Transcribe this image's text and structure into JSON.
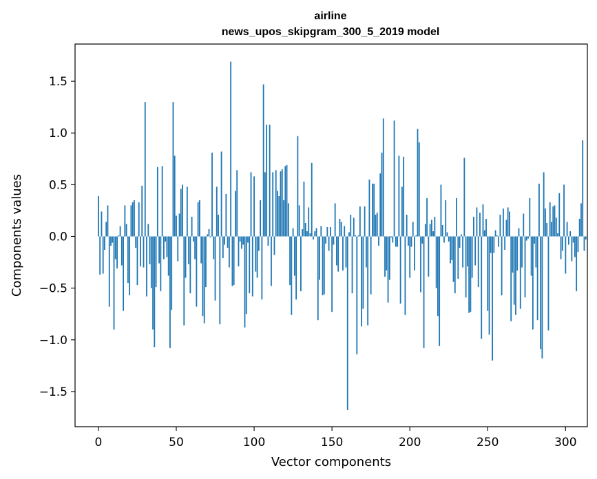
{
  "chart_data": {
    "type": "bar",
    "title_line1": "airline",
    "title_line2": "news_upos_skipgram_300_5_2019 model",
    "xlabel": "Vector components",
    "ylabel": "Components values",
    "xlim": [
      -15,
      314
    ],
    "ylim": [
      -1.84,
      1.86
    ],
    "xticks": [
      0,
      50,
      100,
      150,
      200,
      250,
      300
    ],
    "xtick_labels": [
      "0",
      "50",
      "100",
      "150",
      "200",
      "250",
      "300"
    ],
    "yticks": [
      -1.5,
      -1.0,
      -0.5,
      0.0,
      0.5,
      1.0,
      1.5
    ],
    "ytick_labels": [
      "−1.5",
      "−1.0",
      "−0.5",
      "0.0",
      "0.5",
      "1.0",
      "1.5"
    ],
    "bar_color": "#1f77b4",
    "values": [
      0.39,
      -0.37,
      0.24,
      -0.36,
      -0.13,
      0.14,
      0.3,
      -0.68,
      -0.09,
      -0.06,
      -0.9,
      -0.22,
      -0.31,
      0.01,
      0.1,
      -0.28,
      -0.72,
      0.3,
      0.12,
      -0.45,
      -0.57,
      0.3,
      0.33,
      0.35,
      -0.11,
      -0.47,
      0.33,
      -0.29,
      0.49,
      -0.3,
      1.3,
      -0.58,
      0.12,
      -0.27,
      -0.5,
      -0.9,
      -1.07,
      -0.49,
      0.67,
      -0.26,
      -0.53,
      0.68,
      -0.22,
      -0.05,
      -0.2,
      -0.38,
      -1.08,
      -0.71,
      1.3,
      0.78,
      0.2,
      -0.24,
      0.22,
      0.46,
      0.5,
      -0.86,
      -0.4,
      0.48,
      -0.27,
      -0.55,
      0.19,
      -0.05,
      -0.22,
      -0.68,
      0.33,
      0.35,
      -0.26,
      -0.77,
      -0.84,
      -0.49,
      0.02,
      0.07,
      -0.01,
      0.81,
      -0.22,
      -0.62,
      0.48,
      0.21,
      -0.85,
      0.82,
      -0.21,
      -0.08,
      0.41,
      -0.11,
      -0.3,
      1.69,
      -0.48,
      -0.47,
      0.44,
      0.64,
      -0.29,
      -0.05,
      -0.12,
      -0.08,
      -0.88,
      -0.75,
      -0.06,
      -0.55,
      0.62,
      -0.58,
      0.58,
      -0.34,
      -0.4,
      -0.14,
      0.35,
      -0.61,
      1.47,
      0.62,
      1.08,
      -0.09,
      1.08,
      -0.48,
      0.62,
      -0.18,
      0.64,
      0.44,
      0.39,
      0.63,
      0.65,
      0.35,
      0.68,
      0.69,
      0.32,
      -0.47,
      -0.76,
      0.08,
      -0.38,
      -0.61,
      0.97,
      0.3,
      -0.53,
      0.07,
      0.53,
      0.13,
      0.05,
      0.28,
      0.03,
      0.71,
      -0.03,
      0.05,
      0.08,
      -0.81,
      -0.42,
      0.1,
      -0.57,
      -0.56,
      -0.07,
      0.09,
      -0.14,
      0.09,
      -0.73,
      -0.08,
      0.32,
      -0.28,
      -0.34,
      0.17,
      0.14,
      -0.33,
      0.1,
      -0.3,
      -1.68,
      0.04,
      0.21,
      -0.55,
      0.18,
      0.01,
      -1.14,
      0.01,
      0.29,
      -0.87,
      -0.7,
      0.29,
      -0.3,
      -0.86,
      0.55,
      -0.56,
      0.51,
      0.51,
      0.21,
      0.23,
      -0.09,
      0.61,
      0.81,
      1.14,
      -0.39,
      -0.33,
      -0.64,
      -0.42,
      -0.01,
      -0.06,
      1.12,
      -0.1,
      -0.1,
      0.78,
      -0.65,
      0.48,
      0.77,
      -0.76,
      0.21,
      -0.09,
      -0.4,
      -0.1,
      0.14,
      -0.33,
      0.01,
      1.04,
      0.91,
      -0.54,
      -0.07,
      -1.08,
      0.12,
      0.37,
      -0.39,
      0.12,
      0.16,
      0.05,
      0.19,
      -0.5,
      -0.77,
      -1.06,
      0.5,
      0.11,
      -0.06,
      0.35,
      0.04,
      -0.05,
      -0.26,
      -0.23,
      -0.44,
      -0.55,
      0.37,
      -0.41,
      -0.11,
      0.02,
      -0.3,
      0.76,
      -0.59,
      -0.29,
      -0.74,
      -0.73,
      -0.4,
      0.19,
      -0.28,
      0.28,
      -0.49,
      0.23,
      -0.99,
      0.31,
      0.06,
      0.17,
      -0.72,
      -0.95,
      -0.16,
      -1.2,
      -0.16,
      0.06,
      0.01,
      -0.1,
      0.21,
      -0.57,
      0.27,
      -0.13,
      0.16,
      0.28,
      0.24,
      -0.82,
      -0.35,
      -0.66,
      -0.76,
      -0.33,
      0.08,
      -0.7,
      -0.3,
      0.22,
      -0.59,
      -0.04,
      -0.02,
      0.37,
      -0.38,
      -0.9,
      -0.07,
      -0.3,
      -0.81,
      0.51,
      -1.09,
      -1.18,
      0.62,
      0.27,
      0.13,
      -0.91,
      0.33,
      0.14,
      0.29,
      0.3,
      0.18,
      0.03,
      0.42,
      -0.22,
      -0.14,
      0.5,
      -0.36,
      0.14,
      -0.08,
      0.05,
      -0.24,
      -0.06,
      -0.2,
      -0.53,
      -0.15,
      0.17,
      0.32,
      0.93,
      -0.14,
      -0.03
    ]
  }
}
